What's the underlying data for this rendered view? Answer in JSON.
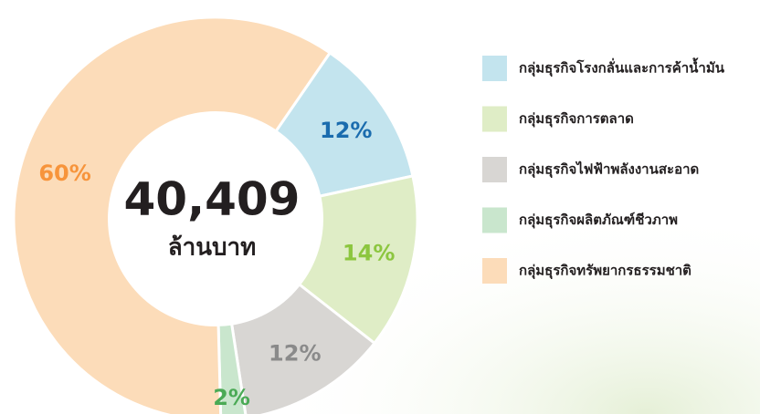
{
  "chart_data": {
    "type": "donut",
    "center_value": "40,409",
    "center_label": "ล้านบาท",
    "categories": [
      "กลุ่มธุรกิจโรงกลั่นและการค้าน้ำมัน",
      "กลุ่มธุรกิจการตลาด",
      "กลุ่มธุรกิจไฟฟ้าพลังงานสะอาด",
      "กลุ่มธุรกิจผลิตภัณฑ์ชีวภาพ",
      "กลุ่มธุรกิจทรัพยากรธรรมชาติ"
    ],
    "values": [
      12,
      14,
      12,
      2,
      60
    ],
    "value_labels": [
      "12%",
      "14%",
      "12%",
      "2%",
      "60%"
    ],
    "colors": [
      "#c3e4ee",
      "#dfedc6",
      "#d8d6d3",
      "#c9e6cd",
      "#fcdcb9"
    ],
    "label_colors": [
      "#1a6cae",
      "#8cc63f",
      "#8a8a8a",
      "#4aaa55",
      "#f7943b"
    ]
  }
}
